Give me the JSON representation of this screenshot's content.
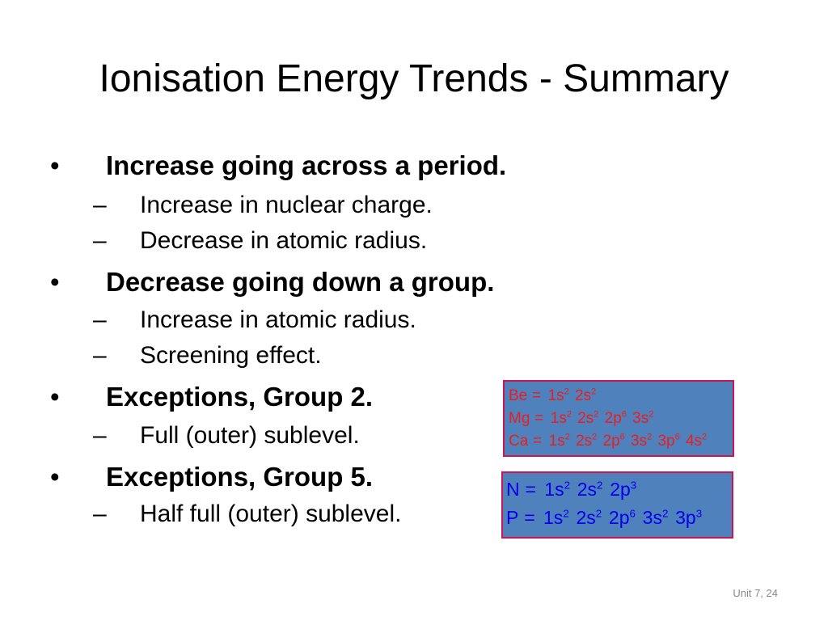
{
  "slide": {
    "title": "Ionisation Energy Trends - Summary",
    "bullet_marker": "•",
    "sub_marker": "–",
    "bullets": [
      {
        "text": "Increase going across a period.",
        "sub": [
          "Increase in nuclear charge.",
          "Decrease in atomic radius."
        ]
      },
      {
        "text": "Decrease going down a group.",
        "sub": [
          "Increase in atomic radius.",
          "Screening effect."
        ]
      },
      {
        "text": "Exceptions, Group 2.",
        "sub": [
          "Full (outer) sublevel."
        ]
      },
      {
        "text": "Exceptions, Group 5.",
        "sub": [
          "Half full (outer) sublevel."
        ]
      }
    ],
    "footer": "Unit 7, 24"
  },
  "config_boxes": [
    {
      "lines": [
        {
          "element": "Be",
          "equals": "=",
          "terms": [
            {
              "orbital": "1s",
              "electrons": "2"
            },
            {
              "orbital": "2s",
              "electrons": "2"
            }
          ]
        },
        {
          "element": "Mg",
          "equals": "=",
          "terms": [
            {
              "orbital": "1s",
              "electrons": "2"
            },
            {
              "orbital": "2s",
              "electrons": "2"
            },
            {
              "orbital": "2p",
              "electrons": "6"
            },
            {
              "orbital": "3s",
              "electrons": "2"
            }
          ]
        },
        {
          "element": "Ca",
          "equals": "=",
          "terms": [
            {
              "orbital": "1s",
              "electrons": "2"
            },
            {
              "orbital": "2s",
              "electrons": "2"
            },
            {
              "orbital": "2p",
              "electrons": "6"
            },
            {
              "orbital": "3s",
              "electrons": "2"
            },
            {
              "orbital": "3p",
              "electrons": "6"
            },
            {
              "orbital": "4s",
              "electrons": "2"
            }
          ]
        }
      ]
    },
    {
      "lines": [
        {
          "element": "N",
          "equals": "=",
          "terms": [
            {
              "orbital": "1s",
              "electrons": "2"
            },
            {
              "orbital": "2s",
              "electrons": "2"
            },
            {
              "orbital": "2p",
              "electrons": "3"
            }
          ]
        },
        {
          "element": "P",
          "equals": "=",
          "terms": [
            {
              "orbital": "1s",
              "electrons": "2"
            },
            {
              "orbital": "2s",
              "electrons": "2"
            },
            {
              "orbital": "2p",
              "electrons": "6"
            },
            {
              "orbital": "3s",
              "electrons": "2"
            },
            {
              "orbital": "3p",
              "electrons": "3"
            }
          ]
        }
      ]
    }
  ],
  "colors": {
    "background": "#ffffff",
    "body_text": "#000000",
    "footer_text": "#898989",
    "box_fill": "#4f81bd",
    "box_border": "#c8174f",
    "group2_config_text": "#ee1c1c",
    "group5_config_text": "#0000ee"
  }
}
